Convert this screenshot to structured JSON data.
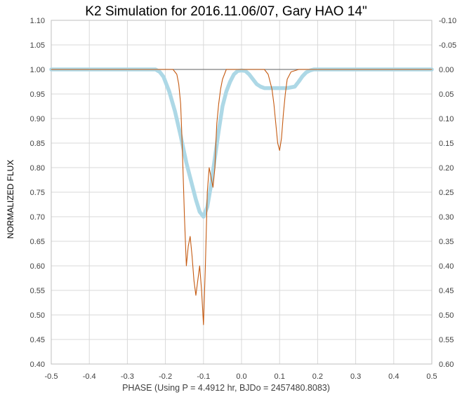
{
  "chart_data": {
    "type": "line",
    "title": "K2 Simulation for 2016.11.06/07, Gary HAO 14\"",
    "xlabel": "PHASE (Using P = 4.4912 hr, BJDo = 2457480.8083)",
    "ylabel": "NORMALIZED FLUX",
    "xlim": [
      -0.5,
      0.5
    ],
    "ylim": [
      0.4,
      1.1
    ],
    "y2lim": [
      -0.1,
      0.6
    ],
    "grid": true,
    "x_ticks": [
      "-0.5",
      "-0.4",
      "-0.3",
      "-0.2",
      "-0.1",
      "0.0",
      "0.1",
      "0.2",
      "0.3",
      "0.4",
      "0.5"
    ],
    "y_ticks": [
      "1.10",
      "1.05",
      "1.00",
      "0.95",
      "0.90",
      "0.85",
      "0.80",
      "0.75",
      "0.70",
      "0.65",
      "0.60",
      "0.55",
      "0.50",
      "0.45",
      "0.40"
    ],
    "y2_ticks": [
      "-0.10",
      "-0.05",
      "0.00",
      "0.05",
      "0.10",
      "0.15",
      "0.20",
      "0.25",
      "0.30",
      "0.35",
      "0.40",
      "0.45",
      "0.50",
      "0.55",
      "0.60"
    ],
    "series": [
      {
        "color": "#add8e6",
        "style": "thick",
        "x": [
          -0.5,
          -0.24,
          -0.226,
          -0.215,
          -0.205,
          -0.19,
          -0.175,
          -0.16,
          -0.145,
          -0.13,
          -0.12,
          -0.11,
          -0.1,
          -0.09,
          -0.08,
          -0.07,
          -0.06,
          -0.05,
          -0.04,
          -0.03,
          -0.02,
          -0.01,
          0.0,
          0.01,
          0.02,
          0.03,
          0.04,
          0.05,
          0.06,
          0.07,
          0.08,
          0.1,
          0.12,
          0.14,
          0.15,
          0.16,
          0.17,
          0.18,
          0.19,
          0.2,
          0.5
        ],
        "y": [
          1.0,
          1.0,
          1.0,
          0.995,
          0.985,
          0.955,
          0.915,
          0.865,
          0.81,
          0.765,
          0.735,
          0.71,
          0.7,
          0.72,
          0.765,
          0.82,
          0.875,
          0.925,
          0.955,
          0.975,
          0.99,
          0.997,
          0.998,
          0.997,
          0.99,
          0.98,
          0.97,
          0.965,
          0.962,
          0.962,
          0.962,
          0.962,
          0.962,
          0.965,
          0.975,
          0.986,
          0.994,
          0.998,
          1.0,
          1.0,
          1.0
        ]
      },
      {
        "color": "#c55a11",
        "style": "thin",
        "x": [
          -0.5,
          -0.18,
          -0.17,
          -0.165,
          -0.16,
          -0.157,
          -0.154,
          -0.15,
          -0.145,
          -0.14,
          -0.135,
          -0.13,
          -0.125,
          -0.12,
          -0.115,
          -0.11,
          -0.105,
          -0.1,
          -0.095,
          -0.09,
          -0.085,
          -0.08,
          -0.075,
          -0.07,
          -0.068,
          -0.065,
          -0.06,
          -0.055,
          -0.05,
          -0.045,
          -0.04,
          -0.03,
          -0.01,
          0.0,
          0.04,
          0.06,
          0.07,
          0.08,
          0.085,
          0.09,
          0.095,
          0.1,
          0.105,
          0.11,
          0.115,
          0.12,
          0.13,
          0.15,
          0.5
        ],
        "y": [
          1.0,
          1.0,
          0.99,
          0.97,
          0.93,
          0.87,
          0.8,
          0.7,
          0.6,
          0.64,
          0.66,
          0.62,
          0.57,
          0.54,
          0.57,
          0.6,
          0.55,
          0.48,
          0.6,
          0.75,
          0.8,
          0.78,
          0.76,
          0.8,
          0.84,
          0.89,
          0.93,
          0.96,
          0.98,
          0.99,
          1.0,
          1.0,
          1.0,
          1.0,
          1.0,
          1.0,
          0.99,
          0.96,
          0.93,
          0.89,
          0.85,
          0.835,
          0.86,
          0.91,
          0.95,
          0.98,
          0.995,
          1.0,
          1.0
        ]
      },
      {
        "color": "#7f7f7f",
        "style": "reference",
        "x": [
          -0.5,
          0.5
        ],
        "y": [
          1.0,
          1.0
        ]
      }
    ]
  }
}
